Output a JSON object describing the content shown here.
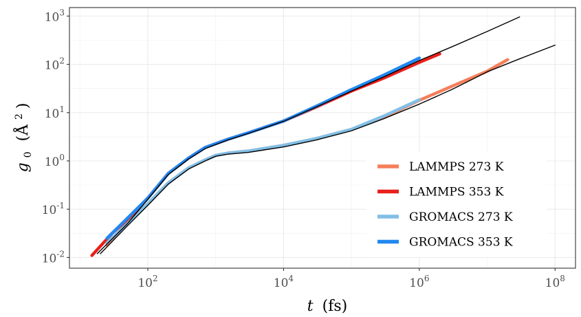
{
  "chart_data": {
    "type": "line",
    "x_scale": "log10",
    "y_scale": "log10",
    "xlim": [
      7,
      200000000
    ],
    "ylim": [
      0.006,
      1500
    ],
    "xlabel_var": "t",
    "xlabel_unit": "(fs)",
    "ylabel_var": "g",
    "ylabel_sub": "0",
    "ylabel_unit": "(Å",
    "ylabel_unit_sup": "2",
    "ylabel_unit_end": ")",
    "x_ticks": [
      {
        "value": 100,
        "base": "10",
        "exp": "2"
      },
      {
        "value": 10000,
        "base": "10",
        "exp": "4"
      },
      {
        "value": 1000000,
        "base": "10",
        "exp": "6"
      },
      {
        "value": 100000000,
        "base": "10",
        "exp": "8"
      }
    ],
    "y_ticks": [
      {
        "value": 0.01,
        "base": "10",
        "exp": "-2"
      },
      {
        "value": 0.1,
        "base": "10",
        "exp": "-1"
      },
      {
        "value": 1,
        "base": "10",
        "exp": "0"
      },
      {
        "value": 10,
        "base": "10",
        "exp": "1"
      },
      {
        "value": 100,
        "base": "10",
        "exp": "2"
      },
      {
        "value": 1000,
        "base": "10",
        "exp": "3"
      }
    ],
    "grid": true,
    "legend_position": "bottom-right",
    "series": [
      {
        "name": "LAMMPS 273 K",
        "color": "#f57f5b",
        "width": 4.5,
        "points": [
          [
            25,
            0.018
          ],
          [
            50,
            0.05
          ],
          [
            100,
            0.13
          ],
          [
            200,
            0.35
          ],
          [
            400,
            0.72
          ],
          [
            700,
            1.05
          ],
          [
            1000,
            1.3
          ],
          [
            1500,
            1.45
          ],
          [
            3000,
            1.6
          ],
          [
            10000,
            2.1
          ],
          [
            30000,
            2.9
          ],
          [
            100000,
            4.5
          ],
          [
            300000,
            8.0
          ],
          [
            1000000,
            18.0
          ],
          [
            3000000,
            35.0
          ],
          [
            10000000,
            72.0
          ],
          [
            20000000,
            125.0
          ]
        ]
      },
      {
        "name": "LAMMPS 353 K",
        "color": "#e8201c",
        "width": 4.5,
        "points": [
          [
            15,
            0.011
          ],
          [
            30,
            0.032
          ],
          [
            50,
            0.06
          ],
          [
            100,
            0.17
          ],
          [
            200,
            0.55
          ],
          [
            400,
            1.15
          ],
          [
            700,
            1.9
          ],
          [
            1500,
            2.8
          ],
          [
            3000,
            3.8
          ],
          [
            10000,
            6.7
          ],
          [
            30000,
            13.0
          ],
          [
            100000,
            28.0
          ],
          [
            300000,
            52.0
          ],
          [
            1000000,
            110.0
          ],
          [
            2000000,
            165.0
          ]
        ]
      },
      {
        "name": "GROMACS 273 K",
        "color": "#82bfe6",
        "width": 4.5,
        "points": [
          [
            25,
            0.02
          ],
          [
            50,
            0.05
          ],
          [
            100,
            0.13
          ],
          [
            200,
            0.35
          ],
          [
            400,
            0.72
          ],
          [
            700,
            1.05
          ],
          [
            1000,
            1.3
          ],
          [
            1500,
            1.45
          ],
          [
            3000,
            1.6
          ],
          [
            10000,
            2.1
          ],
          [
            30000,
            2.9
          ],
          [
            100000,
            4.5
          ],
          [
            300000,
            8.5
          ],
          [
            1000000,
            18.5
          ]
        ]
      },
      {
        "name": "GROMACS 353 K",
        "color": "#2288f0",
        "width": 4.5,
        "points": [
          [
            25,
            0.025
          ],
          [
            50,
            0.065
          ],
          [
            100,
            0.17
          ],
          [
            200,
            0.55
          ],
          [
            400,
            1.15
          ],
          [
            700,
            1.9
          ],
          [
            1500,
            2.8
          ],
          [
            3000,
            3.8
          ],
          [
            10000,
            6.7
          ],
          [
            30000,
            13.5
          ],
          [
            100000,
            30.0
          ],
          [
            300000,
            60.0
          ],
          [
            1000000,
            135.0
          ]
        ]
      }
    ],
    "reference_lines": [
      {
        "color": "#000000",
        "width": 1.4,
        "points": [
          [
            18,
            0.012
          ],
          [
            50,
            0.05
          ],
          [
            100,
            0.16
          ],
          [
            200,
            0.52
          ],
          [
            400,
            1.1
          ],
          [
            700,
            1.8
          ],
          [
            1500,
            2.7
          ],
          [
            3000,
            3.7
          ],
          [
            10000,
            6.6
          ],
          [
            30000,
            13.0
          ],
          [
            100000,
            28.0
          ],
          [
            300000,
            55.0
          ],
          [
            1000000,
            120.0
          ],
          [
            3000000,
            230.0
          ],
          [
            10000000,
            480.0
          ],
          [
            30000000,
            960.0
          ]
        ]
      },
      {
        "color": "#000000",
        "width": 1.4,
        "points": [
          [
            20,
            0.012
          ],
          [
            50,
            0.045
          ],
          [
            100,
            0.12
          ],
          [
            200,
            0.33
          ],
          [
            400,
            0.68
          ],
          [
            700,
            1.0
          ],
          [
            1000,
            1.25
          ],
          [
            1500,
            1.38
          ],
          [
            3000,
            1.5
          ],
          [
            10000,
            1.95
          ],
          [
            30000,
            2.7
          ],
          [
            100000,
            4.2
          ],
          [
            300000,
            7.5
          ],
          [
            1000000,
            15.0
          ],
          [
            3000000,
            30.0
          ],
          [
            10000000,
            70.0
          ],
          [
            30000000,
            130.0
          ],
          [
            100000000,
            250.0
          ]
        ]
      }
    ]
  }
}
